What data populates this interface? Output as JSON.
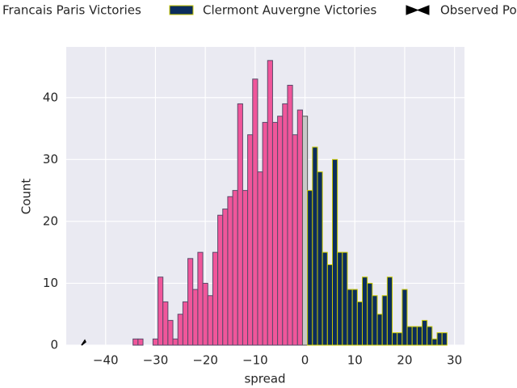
{
  "chart_data": {
    "type": "histogram",
    "xlabel": "spread",
    "ylabel": "Count",
    "xlim": [
      -47.9,
      32.0
    ],
    "ylim": [
      0,
      48.2
    ],
    "xticks": [
      {
        "value": -40,
        "label": "−40"
      },
      {
        "value": -30,
        "label": "−30"
      },
      {
        "value": -20,
        "label": "−20"
      },
      {
        "value": -10,
        "label": "−10"
      },
      0,
      10,
      20,
      30
    ],
    "yticks": [
      0,
      10,
      20,
      30,
      40
    ],
    "grid": true,
    "series": [
      {
        "name": "Francais Paris Victories",
        "color": "#f0569a",
        "edgecolor": "#5a4a6a",
        "bins": [
          -34.5,
          -33.5,
          -32.5,
          -31.5,
          -30.5,
          -29.5,
          -28.5,
          -27.5,
          -26.5,
          -25.5,
          -24.5,
          -23.5,
          -22.5,
          -21.5,
          -20.5,
          -19.5,
          -18.5,
          -17.5,
          -16.5,
          -15.5,
          -14.5,
          -13.5,
          -12.5,
          -11.5,
          -10.5,
          -9.5,
          -8.5,
          -7.5,
          -6.5,
          -5.5,
          -4.5,
          -3.5,
          -2.5,
          -1.5,
          -0.5
        ],
        "counts": [
          1,
          1,
          0,
          0,
          1,
          11,
          7,
          4,
          1,
          5,
          7,
          14,
          9,
          15,
          10,
          8,
          15,
          21,
          22,
          24,
          25,
          39,
          25,
          34,
          43,
          28,
          36,
          46,
          36,
          37,
          39,
          42,
          34,
          38
        ]
      },
      {
        "color": "#c8c8c8",
        "edgecolor": "#555555",
        "bins": [
          -0.5,
          0.5
        ],
        "counts": [
          37
        ]
      },
      {
        "name": "Clermont Auvergne Victories",
        "color": "#0b2d5c",
        "edgecolor": "#c8c800",
        "bins": [
          0.5,
          1.5,
          2.5,
          3.5,
          4.5,
          5.5,
          6.5,
          7.5,
          8.5,
          9.5,
          10.5,
          11.5,
          12.5,
          13.5,
          14.5,
          15.5,
          16.5,
          17.5,
          18.5,
          19.5,
          20.5,
          21.5,
          22.5,
          23.5,
          24.5,
          25.5,
          26.5,
          27.5,
          28.5
        ],
        "counts": [
          25,
          32,
          28,
          15,
          13,
          30,
          15,
          15,
          9,
          9,
          7,
          11,
          10,
          8,
          5,
          8,
          11,
          2,
          2,
          9,
          3,
          3,
          3,
          4,
          3,
          1,
          2,
          2
        ]
      }
    ],
    "observed": {
      "name": "Observed Po",
      "color": "#000000",
      "x": [
        -44.5
      ],
      "values": [
        0
      ]
    }
  }
}
